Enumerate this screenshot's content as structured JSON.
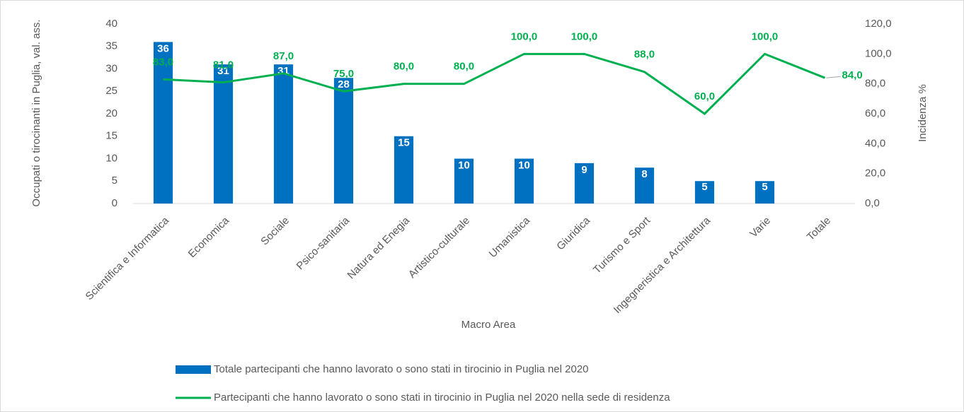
{
  "chart_data": {
    "type": "bar",
    "categories": [
      "Scientifica e Informatica",
      "Economica",
      "Sociale",
      "Psico-sanitaria",
      "Natura ed Enegia",
      "Artistico-culturale",
      "Umanistica",
      "Giuridica",
      "Turismo e Sport",
      "Ingegneristica e Architettura",
      "Varie",
      "Totale"
    ],
    "series": [
      {
        "name": "Totale partecipanti che hanno lavorato o sono stati in tirocinio in Puglia nel 2020",
        "color": "#0070c0",
        "type": "bar",
        "values": [
          36,
          31,
          31,
          28,
          15,
          10,
          10,
          9,
          8,
          5,
          5,
          null
        ]
      },
      {
        "name": "Partecipanti che hanno lavorato o sono stati in tirocinio in Puglia nel 2020 nella sede di residenza",
        "color": "#00b050",
        "type": "line",
        "axis": "y2",
        "values": [
          83,
          81,
          87,
          75,
          80,
          80,
          100,
          100,
          88,
          60,
          100,
          84
        ],
        "value_labels": [
          "83,0",
          "81,0",
          "87,0",
          "75,0",
          "80,0",
          "80,0",
          "100,0",
          "100,0",
          "88,0",
          "60,0",
          "100,0",
          "84,0"
        ]
      }
    ],
    "xlabel": "Macro Area",
    "ylabel": "Occupati o tirocinanti in Puglia, val. ass.",
    "y2label": "Incidenza %",
    "ylim": [
      0,
      40
    ],
    "yticks": [
      0,
      5,
      10,
      15,
      20,
      25,
      30,
      35,
      40
    ],
    "y2lim": [
      0,
      120
    ],
    "y2ticks": [
      {
        "value": 0,
        "label": "0,0"
      },
      {
        "value": 20,
        "label": "20,0"
      },
      {
        "value": 40,
        "label": "40,0"
      },
      {
        "value": 60,
        "label": "60,0"
      },
      {
        "value": 80,
        "label": "80,0"
      },
      {
        "value": 100,
        "label": "100,0"
      },
      {
        "value": 120,
        "label": "120,0"
      }
    ],
    "grid": false,
    "legend": "bottom"
  }
}
